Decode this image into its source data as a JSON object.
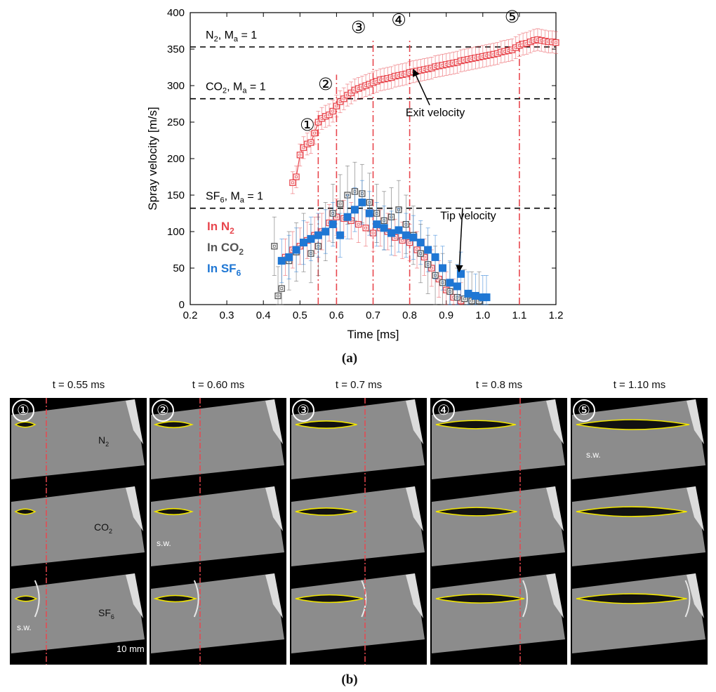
{
  "chart_data": {
    "type": "scatter",
    "xlabel": "Time [ms]",
    "ylabel": "Spray velocity [m/s]",
    "xlim": [
      0.2,
      1.2
    ],
    "ylim": [
      0,
      400
    ],
    "xticks": [
      "0.2",
      "0.3",
      "0.4",
      "0.5",
      "0.6",
      "0.7",
      "0.8",
      "0.9",
      "1.0",
      "1.1",
      "1.2"
    ],
    "yticks": [
      "0",
      "50",
      "100",
      "150",
      "200",
      "250",
      "300",
      "350",
      "400"
    ],
    "hlines": [
      {
        "label_main": "N",
        "label_sub": "2",
        "label_rest": ", M",
        "label_sub2": "a",
        "label_end": " = 1",
        "value": 353
      },
      {
        "label_main": "CO",
        "label_sub": "2",
        "label_rest": ", M",
        "label_sub2": "a",
        "label_end": " = 1",
        "value": 282
      },
      {
        "label_main": "SF",
        "label_sub": "6",
        "label_rest": ", M",
        "label_sub2": "a",
        "label_end": " = 1",
        "value": 132
      }
    ],
    "vlines": [
      {
        "marker": "①",
        "x": 0.55
      },
      {
        "marker": "②",
        "x": 0.6
      },
      {
        "marker": "③",
        "x": 0.7
      },
      {
        "marker": "④",
        "x": 0.8
      },
      {
        "marker": "⑤",
        "x": 1.1
      }
    ],
    "annotations": [
      {
        "text": "Exit velocity",
        "x": 0.87,
        "y": 258,
        "target_x": 0.81,
        "target_y": 322
      },
      {
        "text": "Tip velocity",
        "x": 0.96,
        "y": 117,
        "target_x": 0.935,
        "target_y": 45
      }
    ],
    "legend": [
      {
        "main": "In N",
        "sub": "2",
        "color": "#e8474e"
      },
      {
        "main": "In CO",
        "sub": "2",
        "color": "#555555"
      },
      {
        "main": "In SF",
        "sub": "6",
        "color": "#1f77d4"
      }
    ],
    "series": [
      {
        "name": "Exit velocity",
        "color": "#e8474e",
        "x": [
          0.48,
          0.49,
          0.5,
          0.51,
          0.52,
          0.53,
          0.54,
          0.55,
          0.56,
          0.57,
          0.58,
          0.59,
          0.6,
          0.61,
          0.62,
          0.63,
          0.64,
          0.65,
          0.66,
          0.67,
          0.68,
          0.69,
          0.7,
          0.71,
          0.72,
          0.73,
          0.74,
          0.75,
          0.76,
          0.77,
          0.78,
          0.79,
          0.8,
          0.81,
          0.82,
          0.83,
          0.84,
          0.85,
          0.86,
          0.87,
          0.88,
          0.89,
          0.9,
          0.91,
          0.92,
          0.93,
          0.94,
          0.95,
          0.96,
          0.97,
          0.98,
          0.99,
          1.0,
          1.01,
          1.02,
          1.03,
          1.04,
          1.05,
          1.06,
          1.07,
          1.08,
          1.09,
          1.1,
          1.11,
          1.12,
          1.13,
          1.14,
          1.15,
          1.16,
          1.17,
          1.18,
          1.19,
          1.2
        ],
        "y": [
          167,
          175,
          205,
          215,
          220,
          222,
          235,
          250,
          255,
          258,
          260,
          265,
          272,
          278,
          282,
          287,
          290,
          294,
          296,
          298,
          300,
          302,
          304,
          306,
          308,
          309,
          310,
          311,
          313,
          314,
          315,
          316,
          318,
          319,
          320,
          321,
          322,
          323,
          324,
          326,
          327,
          328,
          329,
          330,
          331,
          332,
          334,
          335,
          336,
          337,
          338,
          339,
          340,
          341,
          342,
          343,
          344,
          346,
          347,
          348,
          349,
          352,
          355,
          357,
          358,
          360,
          362,
          363,
          362,
          361,
          360,
          360,
          359
        ],
        "err": 15
      },
      {
        "name": "In N2",
        "color": "#e8474e",
        "x": [
          0.46,
          0.48,
          0.5,
          0.52,
          0.54,
          0.56,
          0.58,
          0.6,
          0.62,
          0.64,
          0.66,
          0.68,
          0.7,
          0.72,
          0.74,
          0.76,
          0.78,
          0.8,
          0.82,
          0.84,
          0.86,
          0.88,
          0.9,
          0.92,
          0.94
        ],
        "y": [
          65,
          75,
          80,
          88,
          95,
          100,
          112,
          120,
          118,
          115,
          110,
          105,
          98,
          105,
          100,
          92,
          88,
          85,
          75,
          65,
          50,
          35,
          20,
          10,
          5
        ],
        "err": 25
      },
      {
        "name": "In CO2",
        "color": "#555555",
        "x": [
          0.43,
          0.44,
          0.45,
          0.47,
          0.49,
          0.51,
          0.53,
          0.55,
          0.57,
          0.59,
          0.61,
          0.63,
          0.65,
          0.67,
          0.69,
          0.71,
          0.73,
          0.75,
          0.77,
          0.79,
          0.81,
          0.83,
          0.85,
          0.87,
          0.89,
          0.91,
          0.93,
          0.95,
          0.97,
          0.99
        ],
        "y": [
          80,
          12,
          22,
          60,
          72,
          85,
          70,
          80,
          100,
          125,
          138,
          150,
          155,
          152,
          140,
          125,
          115,
          120,
          130,
          110,
          95,
          70,
          55,
          40,
          30,
          18,
          10,
          8,
          5,
          5
        ],
        "err": 40
      },
      {
        "name": "In SF6",
        "color": "#1f77d4",
        "x": [
          0.45,
          0.47,
          0.49,
          0.51,
          0.53,
          0.55,
          0.57,
          0.59,
          0.61,
          0.63,
          0.65,
          0.67,
          0.69,
          0.71,
          0.73,
          0.75,
          0.77,
          0.79,
          0.81,
          0.83,
          0.85,
          0.87,
          0.89,
          0.91,
          0.93,
          0.94,
          0.96,
          0.98,
          1.0,
          1.01
        ],
        "y": [
          60,
          65,
          75,
          85,
          90,
          95,
          100,
          110,
          95,
          120,
          130,
          140,
          125,
          110,
          105,
          98,
          102,
          95,
          92,
          85,
          75,
          65,
          50,
          30,
          25,
          42,
          15,
          12,
          10,
          10
        ],
        "err": 30
      }
    ]
  },
  "captions": {
    "a": "(a)",
    "b": "(b)"
  },
  "panels": [
    {
      "marker": "①",
      "time": "t = 0.55 ms",
      "len": [
        0.16,
        0.16,
        0.17
      ],
      "sw_row": 2
    },
    {
      "marker": "②",
      "time": "t = 0.60 ms",
      "len": [
        0.3,
        0.3,
        0.33
      ],
      "sw_row": 1
    },
    {
      "marker": "③",
      "time": "t = 0.7 ms",
      "len": [
        0.5,
        0.5,
        0.55
      ],
      "sw_row": -1
    },
    {
      "marker": "④",
      "time": "t = 0.8 ms",
      "len": [
        0.65,
        0.66,
        0.72
      ],
      "sw_row": -1
    },
    {
      "marker": "⑤",
      "time": "t = 1.10 ms",
      "len": [
        0.92,
        0.9,
        0.9
      ],
      "sw_row": 0
    }
  ],
  "gas_labels": {
    "n2_main": "N",
    "n2_sub": "2",
    "co2_main": "CO",
    "co2_sub": "2",
    "sf6_main": "SF",
    "sf6_sub": "6"
  },
  "sw_label": "s.w.",
  "scale_label": "10 mm"
}
